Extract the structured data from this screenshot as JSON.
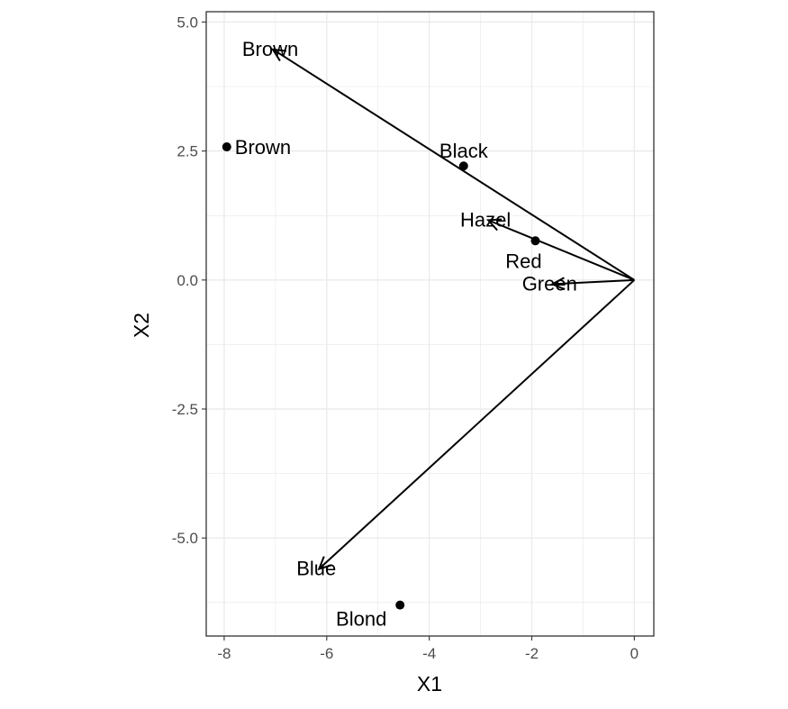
{
  "chart_data": {
    "type": "biplot",
    "xlabel": "X1",
    "ylabel": "X2",
    "xlim": [
      -8.35,
      0.38
    ],
    "ylim": [
      -6.9,
      5.2
    ],
    "xticks": [
      -8,
      -6,
      -4,
      -2,
      0
    ],
    "yticks": [
      -5.0,
      -2.5,
      0.0,
      2.5,
      5.0
    ],
    "ytick_labels": [
      "-5.0",
      "-2.5",
      "0.0",
      "2.5",
      "5.0"
    ],
    "grid": true,
    "points": [
      {
        "label": "Brown",
        "x": -7.95,
        "y": 2.58,
        "label_position": "right"
      },
      {
        "label": "Black",
        "x": -3.33,
        "y": 2.21,
        "label_position": "top"
      },
      {
        "label": "Red",
        "x": -1.93,
        "y": 0.76,
        "label_position": "bottom"
      },
      {
        "label": "Blond",
        "x": -4.57,
        "y": -6.3,
        "label_position": "bottom-left"
      }
    ],
    "arrows": [
      {
        "label": "Brown",
        "x": -7.05,
        "y": 4.47,
        "label_position": "tip"
      },
      {
        "label": "Hazel",
        "x": -2.85,
        "y": 1.16,
        "label_position": "tip"
      },
      {
        "label": "Green",
        "x": -1.6,
        "y": -0.08,
        "label_position": "tip"
      },
      {
        "label": "Blue",
        "x": -6.15,
        "y": -5.6,
        "label_position": "tip"
      }
    ]
  }
}
